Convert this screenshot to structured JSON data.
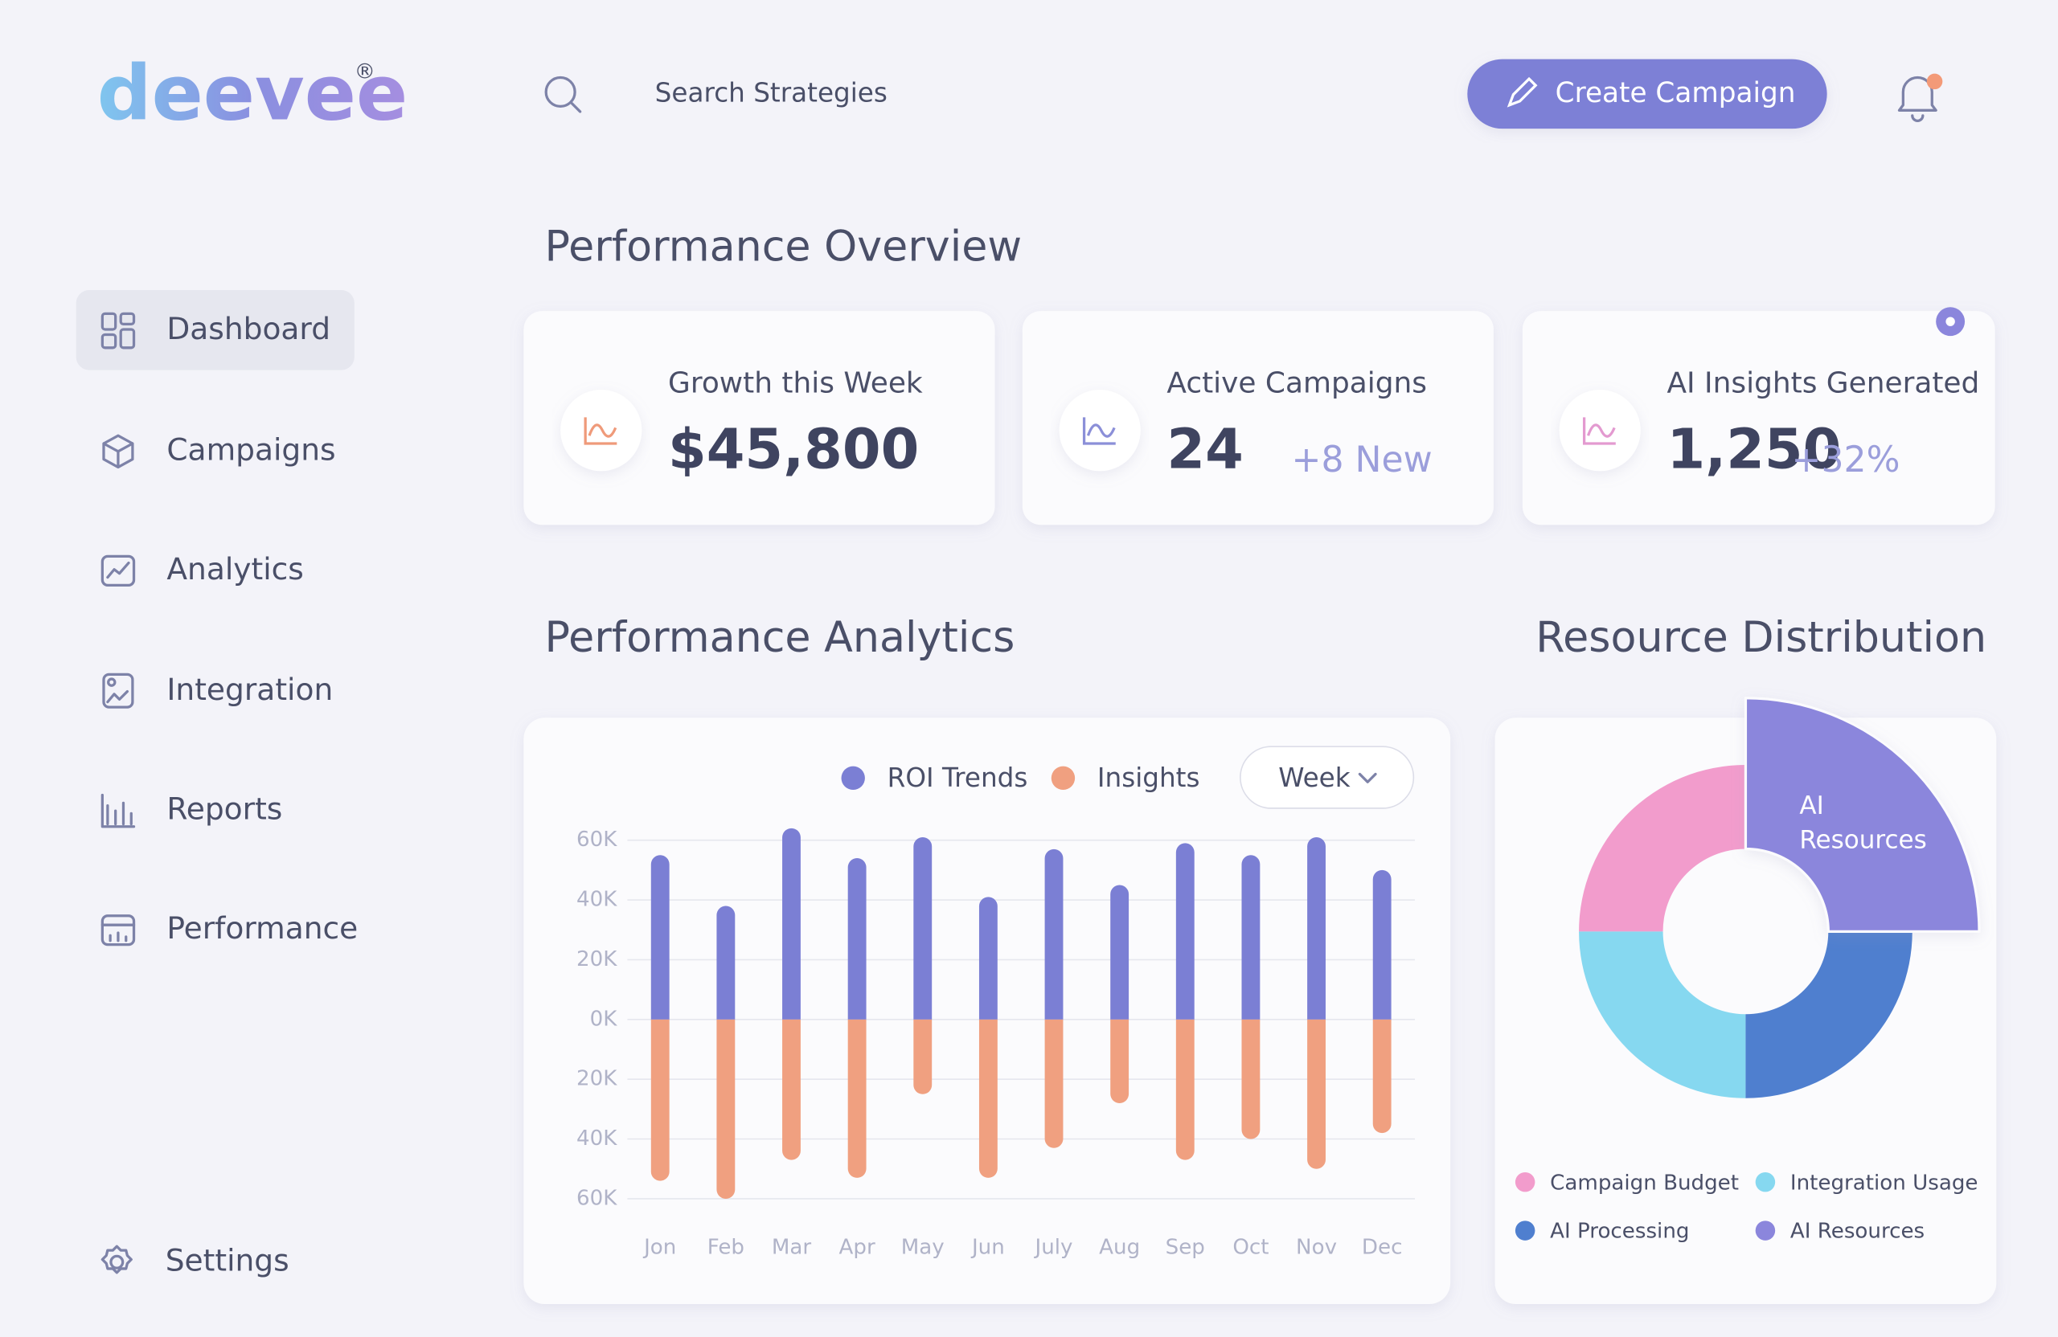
{
  "brand": {
    "logo": "deevee",
    "mark": "®"
  },
  "search": "Search Strategies",
  "action": "Create Campaign",
  "nav": [
    "Dashboard",
    "Campaigns",
    "Analytics",
    "Integration",
    "Reports",
    "Performance"
  ],
  "settings": "Settings",
  "overview": {
    "title": "Performance Overview",
    "cards": [
      {
        "label": "Growth this Week",
        "value": "$45,800"
      },
      {
        "label": "Active Campaigns",
        "value": "24",
        "delta": "+8 New"
      },
      {
        "label": "AI Insights Generated",
        "value": "1,250",
        "delta": "+32%"
      }
    ]
  },
  "chart_data": [
    {
      "type": "bar",
      "title": "Performance Analytics",
      "filter": "Week",
      "categories": [
        "Jon",
        "Feb",
        "Mar",
        "Apr",
        "May",
        "Jun",
        "July",
        "Aug",
        "Sep",
        "Oct",
        "Nov",
        "Dec"
      ],
      "series": [
        {
          "name": "ROI Trends",
          "color": "#7b7fd4",
          "values": [
            55000,
            38000,
            64000,
            54000,
            61000,
            41000,
            57000,
            45000,
            59000,
            55000,
            61000,
            50000
          ]
        },
        {
          "name": "Insights",
          "color": "#f0a080",
          "values": [
            -54000,
            -60000,
            -47000,
            -53000,
            -25000,
            -53000,
            -43000,
            -28000,
            -47000,
            -40000,
            -50000,
            -38000
          ]
        }
      ],
      "ylim": [
        -61000,
        65000
      ],
      "yticks": [
        {
          "value": 60000,
          "label": "60K"
        },
        {
          "value": 40000,
          "label": "40K"
        },
        {
          "value": 20000,
          "label": "20K"
        },
        {
          "value": 0,
          "label": "0K"
        },
        {
          "value": -20000,
          "label": "20K"
        },
        {
          "value": -40000,
          "label": "40K"
        },
        {
          "value": -60000,
          "label": "60K"
        }
      ],
      "grid": true
    },
    {
      "type": "pie",
      "title": "Resource Distribution",
      "categories": [
        "Campaign Budget",
        "Integration Usage",
        "AI Processing",
        "AI Resources"
      ],
      "values": [
        25,
        25,
        25,
        25
      ],
      "colors": [
        "#f29ccc",
        "#86d8f0",
        "#4f7fcf",
        "#8b86dc"
      ],
      "donut": true,
      "exploded_index": 3,
      "callout_lines": [
        "AI",
        "Resources"
      ]
    }
  ]
}
